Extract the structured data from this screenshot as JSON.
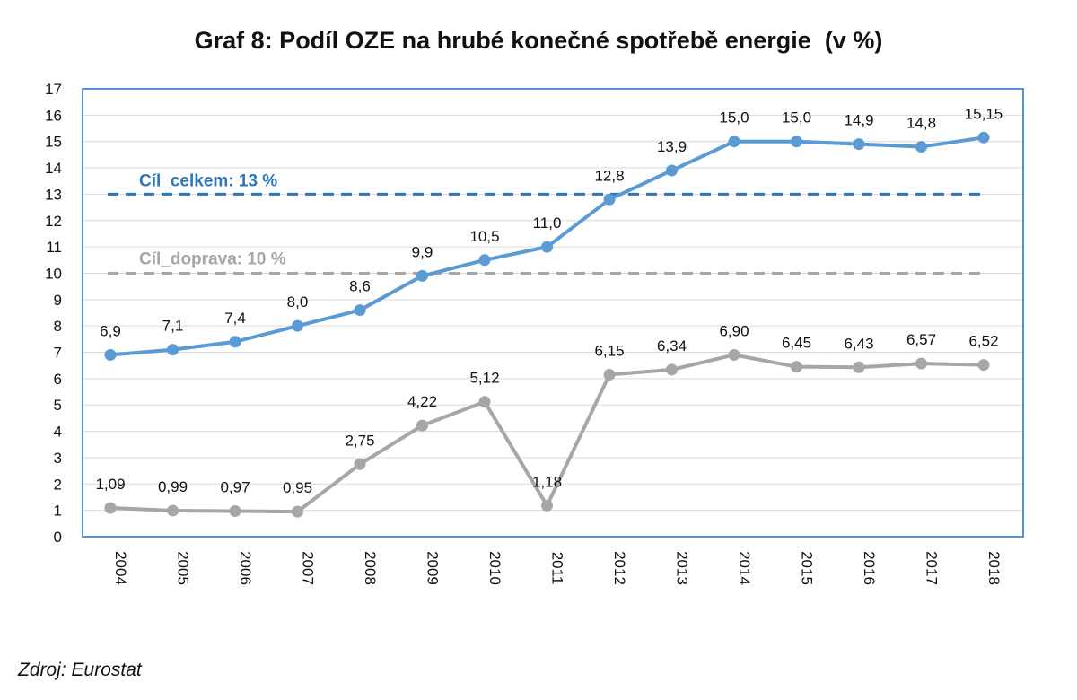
{
  "title": "Graf 8: Podíl OZE na hrubé konečné spotřebě energie  (v %)",
  "source": "Zdroj: Eurostat",
  "colors": {
    "total": "#5B9BD5",
    "total_target": "#2E75B6",
    "transport": "#A6A6A6",
    "transport_target": "#A6A6A6",
    "frame": "#4F95D6",
    "grid": "#D9D9D9"
  },
  "chart_data": {
    "type": "line",
    "x": [
      "2004",
      "2005",
      "2006",
      "2007",
      "2008",
      "2009",
      "2010",
      "2011",
      "2012",
      "2013",
      "2014",
      "2015",
      "2016",
      "2017",
      "2018"
    ],
    "ylim": [
      0,
      17
    ],
    "yticks": [
      0,
      1,
      2,
      3,
      4,
      5,
      6,
      7,
      8,
      9,
      10,
      11,
      12,
      13,
      14,
      15,
      16,
      17
    ],
    "grid": true,
    "series": [
      {
        "key": "total",
        "values": [
          6.9,
          7.1,
          7.4,
          8.0,
          8.6,
          9.9,
          10.5,
          11.0,
          12.8,
          13.9,
          15.0,
          15.0,
          14.9,
          14.8,
          15.15
        ],
        "labels": [
          "6,9",
          "7,1",
          "7,4",
          "8,0",
          "8,6",
          "9,9",
          "10,5",
          "11,0",
          "12,8",
          "13,9",
          "15,0",
          "15,0",
          "14,9",
          "14,8",
          "15,15"
        ]
      },
      {
        "key": "transport",
        "values": [
          1.09,
          0.99,
          0.97,
          0.95,
          2.75,
          4.22,
          5.12,
          1.18,
          6.15,
          6.34,
          6.9,
          6.45,
          6.43,
          6.57,
          6.52
        ],
        "labels": [
          "1,09",
          "0,99",
          "0,97",
          "0,95",
          "2,75",
          "4,22",
          "5,12",
          "1,18",
          "6,15",
          "6,34",
          "6,90",
          "6,45",
          "6,43",
          "6,57",
          "6,52"
        ]
      }
    ],
    "targets": [
      {
        "key": "total_target",
        "value": 13,
        "label": "Cíl_celkem: 13 %"
      },
      {
        "key": "transport_target",
        "value": 10,
        "label": "Cíl_doprava: 10 %"
      }
    ]
  }
}
